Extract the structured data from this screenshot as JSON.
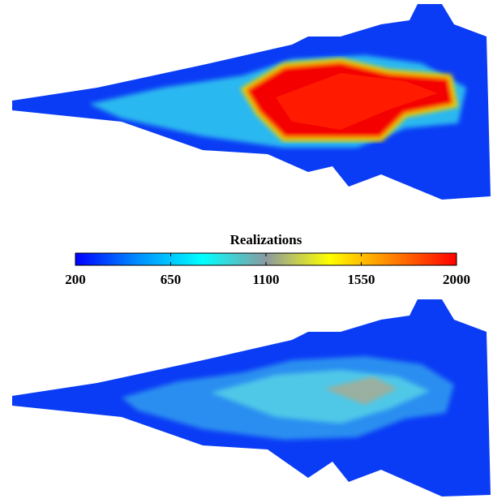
{
  "chart_data": {
    "type": "colorbar",
    "title": "Realizations",
    "clim": [
      200,
      2000
    ],
    "cticks": [
      200,
      650,
      1100,
      1550,
      2000
    ],
    "colormap": [
      "#0000ff",
      "#0090ff",
      "#00ffff",
      "#8a9aa0",
      "#ffff00",
      "#ff8000",
      "#ff0000"
    ]
  }
}
